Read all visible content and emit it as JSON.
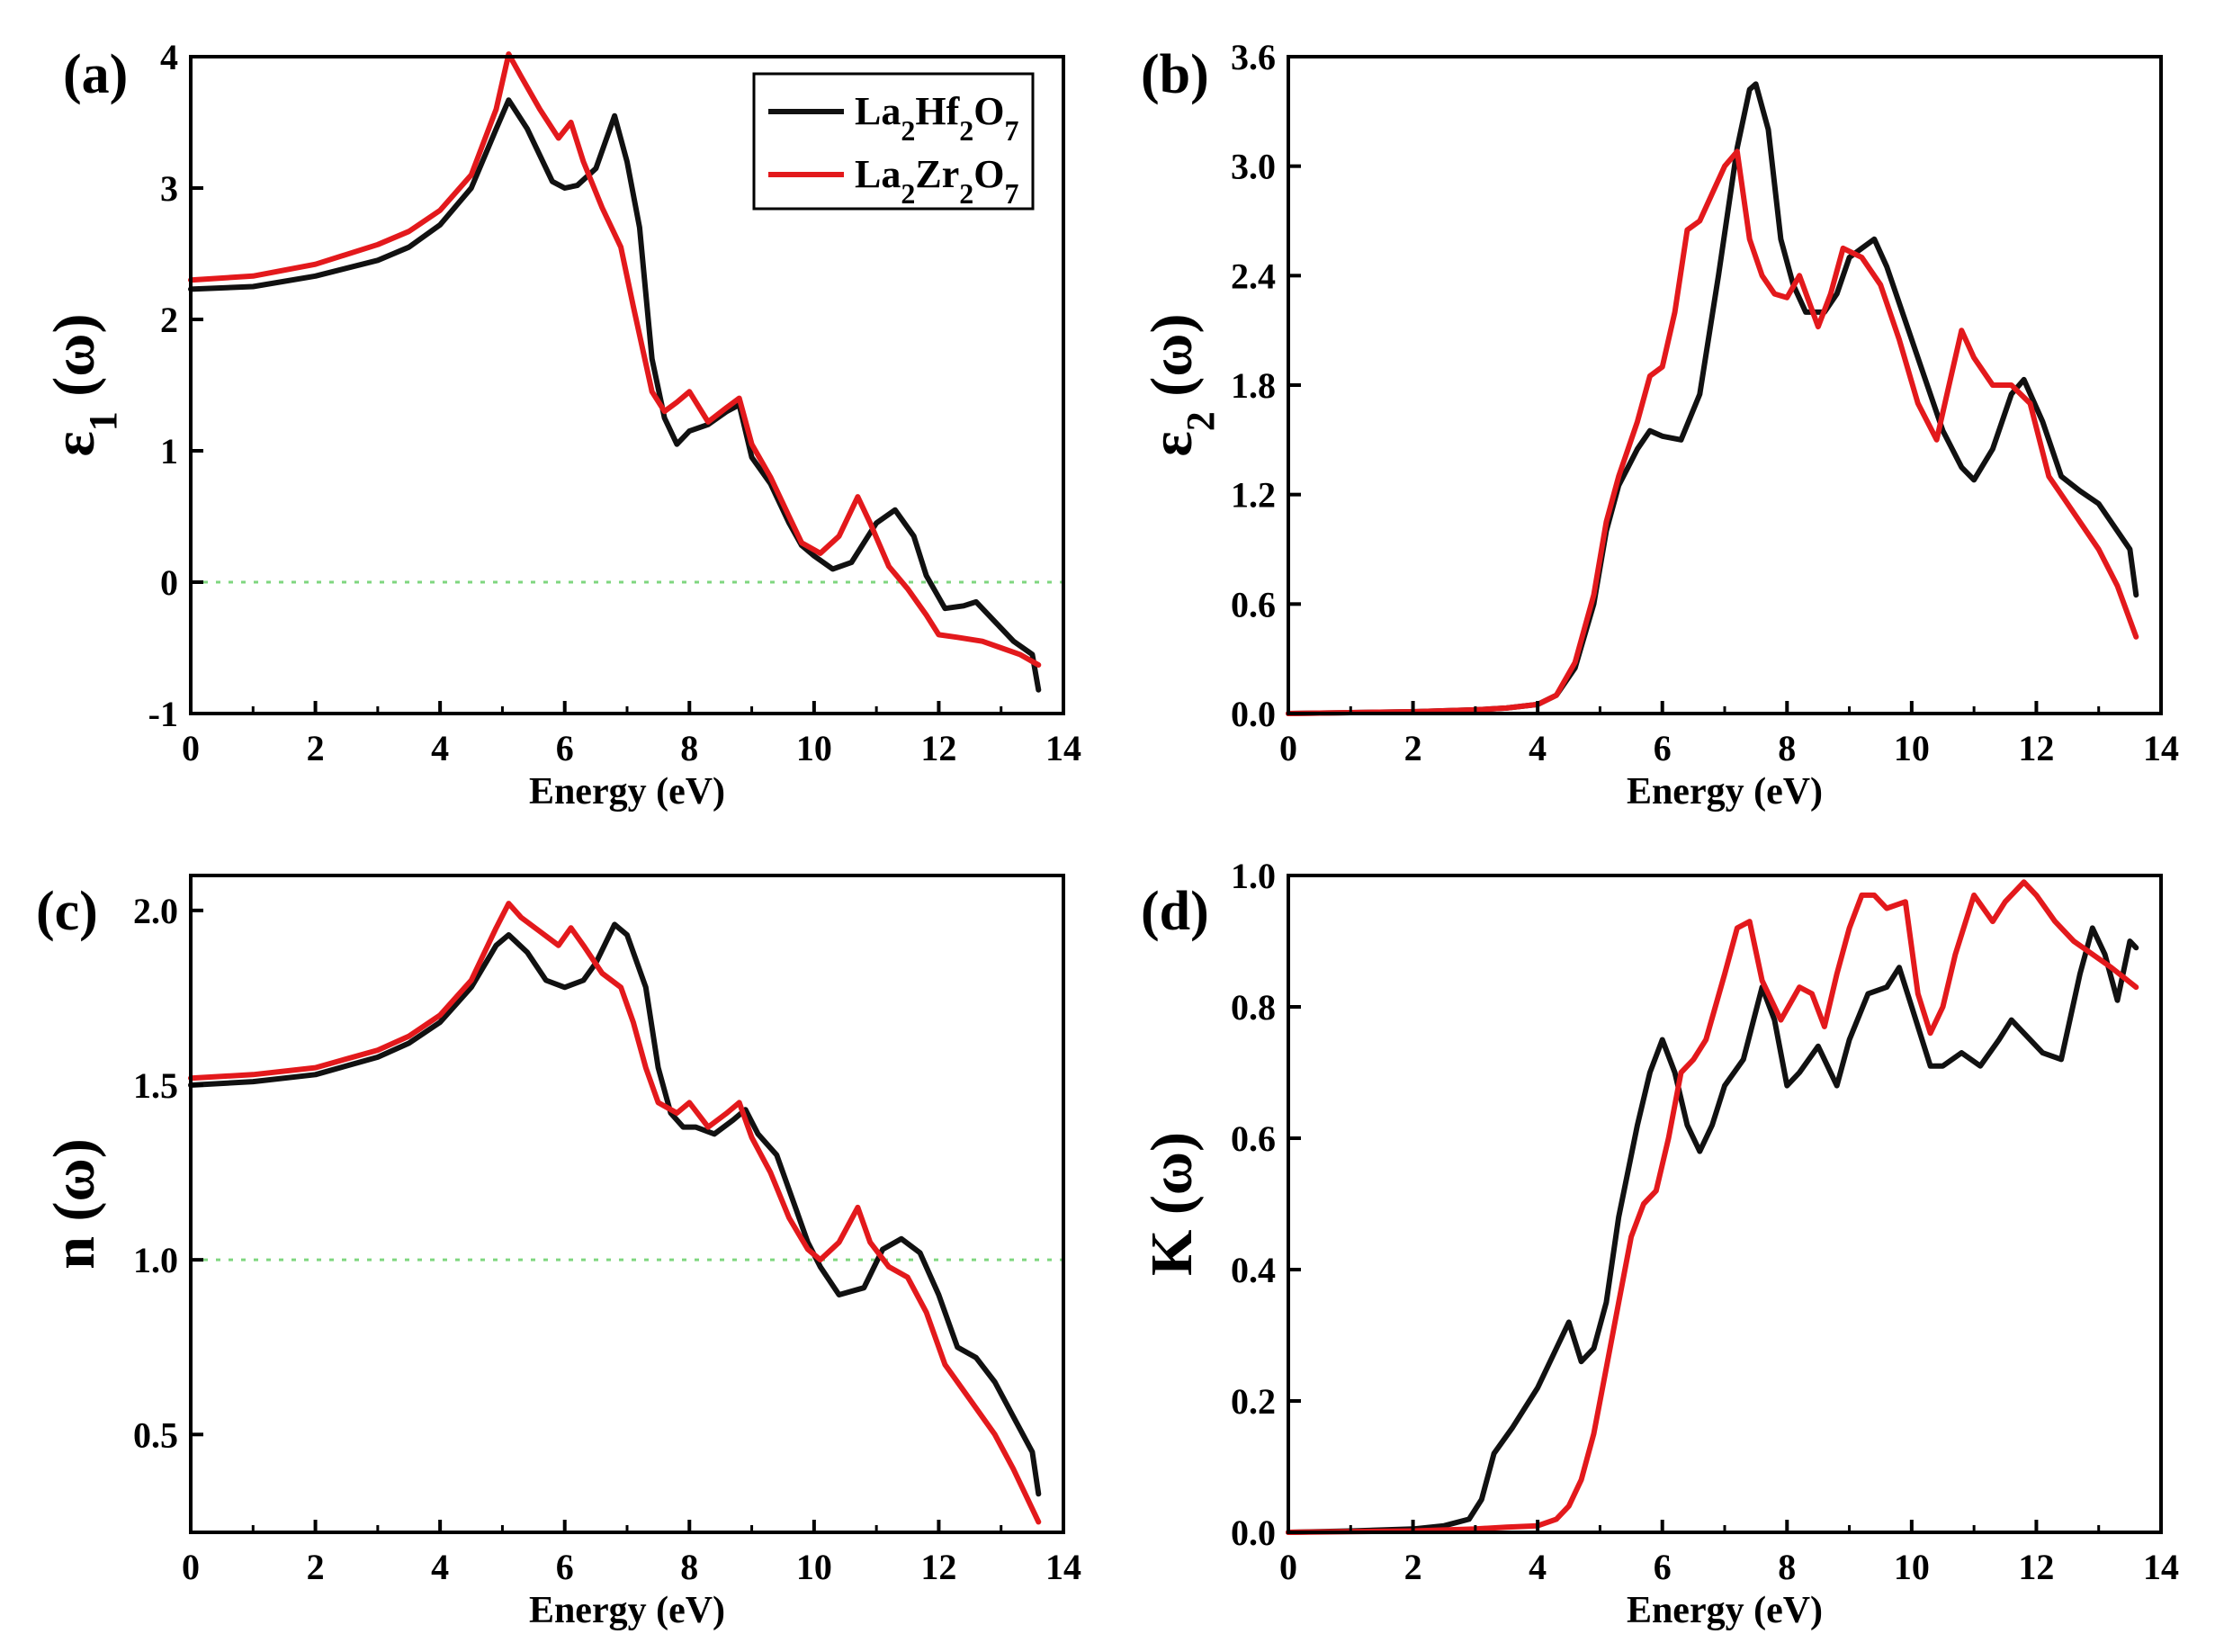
{
  "chart_data": [
    {
      "type": "line",
      "panel_label": "(a)",
      "xlabel": "Energy (eV)",
      "ylabel": "ε",
      "ylabel_sub": "1",
      "ylabel_tail": " (ω)",
      "xlim": [
        0,
        14
      ],
      "ylim": [
        -1,
        4
      ],
      "xticks": [
        "0",
        "2",
        "4",
        "6",
        "8",
        "10",
        "12",
        "14"
      ],
      "yticks": [
        "-1",
        "0",
        "1",
        "2",
        "3",
        "4"
      ],
      "reference_line": 0,
      "series": [
        {
          "name": "La2Hf2O7",
          "x": [
            0,
            1,
            2,
            3,
            3.5,
            4,
            4.5,
            4.9,
            5.1,
            5.4,
            5.8,
            6.0,
            6.2,
            6.5,
            6.8,
            7.0,
            7.2,
            7.4,
            7.6,
            7.8,
            8.0,
            8.3,
            8.6,
            8.8,
            9.0,
            9.3,
            9.6,
            9.8,
            10.0,
            10.3,
            10.6,
            11.0,
            11.3,
            11.6,
            11.8,
            12.1,
            12.4,
            12.6,
            12.9,
            13.2,
            13.5,
            13.6
          ],
          "y": [
            2.23,
            2.25,
            2.33,
            2.45,
            2.55,
            2.72,
            3.0,
            3.45,
            3.67,
            3.45,
            3.05,
            3.0,
            3.02,
            3.15,
            3.55,
            3.2,
            2.7,
            1.7,
            1.25,
            1.05,
            1.15,
            1.2,
            1.3,
            1.35,
            0.95,
            0.75,
            0.45,
            0.28,
            0.2,
            0.1,
            0.15,
            0.45,
            0.55,
            0.35,
            0.05,
            -0.2,
            -0.18,
            -0.15,
            -0.3,
            -0.45,
            -0.55,
            -0.82
          ]
        },
        {
          "name": "La2Zr2O7",
          "x": [
            0,
            1,
            2,
            3,
            3.5,
            4,
            4.5,
            4.9,
            5.1,
            5.3,
            5.6,
            5.9,
            6.1,
            6.3,
            6.6,
            6.9,
            7.1,
            7.4,
            7.6,
            7.8,
            8.0,
            8.3,
            8.6,
            8.8,
            9.0,
            9.3,
            9.6,
            9.8,
            10.1,
            10.4,
            10.7,
            10.9,
            11.2,
            11.5,
            11.8,
            12.0,
            12.3,
            12.7,
            13.0,
            13.3,
            13.6
          ],
          "y": [
            2.3,
            2.33,
            2.42,
            2.57,
            2.67,
            2.83,
            3.1,
            3.6,
            4.02,
            3.85,
            3.6,
            3.38,
            3.5,
            3.2,
            2.85,
            2.55,
            2.1,
            1.45,
            1.3,
            1.37,
            1.45,
            1.22,
            1.33,
            1.4,
            1.05,
            0.8,
            0.5,
            0.3,
            0.22,
            0.35,
            0.65,
            0.45,
            0.12,
            -0.05,
            -0.25,
            -0.4,
            -0.42,
            -0.45,
            -0.5,
            -0.55,
            -0.63
          ]
        }
      ],
      "legend": [
        "La2Hf2O7",
        "La2Zr2O7"
      ],
      "legend_position": "top-right"
    },
    {
      "type": "line",
      "panel_label": "(b)",
      "xlabel": "Energy (eV)",
      "ylabel": "ε",
      "ylabel_sub": "2",
      "ylabel_tail": " (ω)",
      "xlim": [
        0,
        14
      ],
      "ylim": [
        0,
        3.6
      ],
      "xticks": [
        "0",
        "2",
        "4",
        "6",
        "8",
        "10",
        "12",
        "14"
      ],
      "yticks": [
        "0.0",
        "0.6",
        "1.2",
        "1.8",
        "2.4",
        "3.0",
        "3.6"
      ],
      "series": [
        {
          "name": "La2Hf2O7",
          "x": [
            0,
            1,
            2,
            3,
            3.5,
            4,
            4.3,
            4.6,
            4.9,
            5.1,
            5.3,
            5.6,
            5.8,
            6.0,
            6.3,
            6.6,
            6.9,
            7.2,
            7.4,
            7.5,
            7.7,
            7.9,
            8.1,
            8.3,
            8.6,
            8.8,
            9.0,
            9.2,
            9.4,
            9.6,
            9.9,
            10.2,
            10.5,
            10.8,
            11.0,
            11.3,
            11.6,
            11.8,
            12.1,
            12.4,
            12.7,
            13.0,
            13.3,
            13.5,
            13.6
          ],
          "y": [
            0,
            0.005,
            0.01,
            0.02,
            0.03,
            0.05,
            0.1,
            0.25,
            0.6,
            1.0,
            1.25,
            1.45,
            1.55,
            1.52,
            1.5,
            1.75,
            2.4,
            3.1,
            3.42,
            3.45,
            3.2,
            2.6,
            2.35,
            2.2,
            2.2,
            2.3,
            2.5,
            2.55,
            2.6,
            2.45,
            2.15,
            1.85,
            1.55,
            1.35,
            1.28,
            1.45,
            1.75,
            1.83,
            1.6,
            1.3,
            1.22,
            1.15,
            1.0,
            0.9,
            0.65
          ]
        },
        {
          "name": "La2Zr2O7",
          "x": [
            0,
            1,
            2,
            3,
            3.5,
            4,
            4.3,
            4.6,
            4.9,
            5.1,
            5.3,
            5.6,
            5.8,
            6.0,
            6.2,
            6.4,
            6.6,
            6.8,
            7.0,
            7.2,
            7.4,
            7.6,
            7.8,
            8.0,
            8.2,
            8.5,
            8.7,
            8.9,
            9.2,
            9.5,
            9.8,
            10.1,
            10.4,
            10.6,
            10.8,
            11.0,
            11.3,
            11.6,
            11.9,
            12.2,
            12.6,
            13.0,
            13.3,
            13.6
          ],
          "y": [
            0,
            0.005,
            0.01,
            0.02,
            0.03,
            0.05,
            0.1,
            0.28,
            0.65,
            1.05,
            1.3,
            1.6,
            1.85,
            1.9,
            2.2,
            2.65,
            2.7,
            2.85,
            3.0,
            3.08,
            2.6,
            2.4,
            2.3,
            2.28,
            2.4,
            2.12,
            2.3,
            2.55,
            2.5,
            2.35,
            2.05,
            1.7,
            1.5,
            1.8,
            2.1,
            1.95,
            1.8,
            1.8,
            1.7,
            1.3,
            1.1,
            0.9,
            0.7,
            0.42
          ]
        }
      ]
    },
    {
      "type": "line",
      "panel_label": "(c)",
      "xlabel": "Energy (eV)",
      "ylabel": "n",
      "ylabel_sub": "",
      "ylabel_tail": " (ω)",
      "xlim": [
        0,
        14
      ],
      "ylim": [
        0.22,
        2.1
      ],
      "xticks": [
        "0",
        "2",
        "4",
        "6",
        "8",
        "10",
        "12",
        "14"
      ],
      "yticks": [
        "0.5",
        "1.0",
        "1.5",
        "2.0"
      ],
      "reference_line": 1.0,
      "series": [
        {
          "name": "La2Hf2O7",
          "x": [
            0,
            1,
            2,
            3,
            3.5,
            4,
            4.5,
            4.9,
            5.1,
            5.4,
            5.7,
            6.0,
            6.3,
            6.5,
            6.8,
            7.0,
            7.3,
            7.5,
            7.7,
            7.9,
            8.1,
            8.4,
            8.7,
            8.9,
            9.1,
            9.4,
            9.7,
            9.9,
            10.1,
            10.4,
            10.8,
            11.1,
            11.4,
            11.7,
            12.0,
            12.3,
            12.6,
            12.9,
            13.2,
            13.5,
            13.6
          ],
          "y": [
            1.5,
            1.51,
            1.53,
            1.58,
            1.62,
            1.68,
            1.78,
            1.9,
            1.93,
            1.88,
            1.8,
            1.78,
            1.8,
            1.85,
            1.96,
            1.93,
            1.78,
            1.55,
            1.42,
            1.38,
            1.38,
            1.36,
            1.4,
            1.43,
            1.36,
            1.3,
            1.15,
            1.05,
            0.98,
            0.9,
            0.92,
            1.03,
            1.06,
            1.02,
            0.9,
            0.75,
            0.72,
            0.65,
            0.55,
            0.45,
            0.33
          ]
        },
        {
          "name": "La2Zr2O7",
          "x": [
            0,
            1,
            2,
            3,
            3.5,
            4,
            4.5,
            4.9,
            5.1,
            5.3,
            5.6,
            5.9,
            6.1,
            6.3,
            6.6,
            6.9,
            7.1,
            7.3,
            7.5,
            7.8,
            8.0,
            8.3,
            8.6,
            8.8,
            9.0,
            9.3,
            9.6,
            9.9,
            10.1,
            10.4,
            10.7,
            10.9,
            11.2,
            11.5,
            11.8,
            12.1,
            12.5,
            12.9,
            13.2,
            13.6
          ],
          "y": [
            1.52,
            1.53,
            1.55,
            1.6,
            1.64,
            1.7,
            1.8,
            1.95,
            2.02,
            1.98,
            1.94,
            1.9,
            1.95,
            1.9,
            1.82,
            1.78,
            1.68,
            1.55,
            1.45,
            1.42,
            1.45,
            1.38,
            1.42,
            1.45,
            1.35,
            1.25,
            1.12,
            1.03,
            1.0,
            1.05,
            1.15,
            1.05,
            0.98,
            0.95,
            0.85,
            0.7,
            0.6,
            0.5,
            0.4,
            0.25
          ]
        }
      ]
    },
    {
      "type": "line",
      "panel_label": "(d)",
      "xlabel": "Energy (eV)",
      "ylabel": "K",
      "ylabel_sub": "",
      "ylabel_tail": " (ω)",
      "xlim": [
        0,
        14
      ],
      "ylim": [
        0,
        1.0
      ],
      "xticks": [
        "0",
        "2",
        "4",
        "6",
        "8",
        "10",
        "12",
        "14"
      ],
      "yticks": [
        "0.0",
        "0.2",
        "0.4",
        "0.6",
        "0.8",
        "1.0"
      ],
      "series": [
        {
          "name": "La2Hf2O7",
          "x": [
            0,
            1,
            2,
            2.5,
            2.9,
            3.1,
            3.3,
            3.6,
            4.0,
            4.3,
            4.5,
            4.7,
            4.9,
            5.1,
            5.3,
            5.6,
            5.8,
            6.0,
            6.2,
            6.4,
            6.6,
            6.8,
            7.0,
            7.3,
            7.6,
            7.8,
            8.0,
            8.2,
            8.5,
            8.8,
            9.0,
            9.3,
            9.6,
            9.8,
            10.0,
            10.3,
            10.5,
            10.8,
            11.1,
            11.4,
            11.6,
            11.8,
            12.1,
            12.4,
            12.7,
            12.9,
            13.1,
            13.3,
            13.5,
            13.6
          ],
          "y": [
            0,
            0.002,
            0.005,
            0.01,
            0.02,
            0.05,
            0.12,
            0.16,
            0.22,
            0.28,
            0.32,
            0.26,
            0.28,
            0.35,
            0.48,
            0.62,
            0.7,
            0.75,
            0.7,
            0.62,
            0.58,
            0.62,
            0.68,
            0.72,
            0.83,
            0.78,
            0.68,
            0.7,
            0.74,
            0.68,
            0.75,
            0.82,
            0.83,
            0.86,
            0.8,
            0.71,
            0.71,
            0.73,
            0.71,
            0.75,
            0.78,
            0.76,
            0.73,
            0.72,
            0.85,
            0.92,
            0.88,
            0.81,
            0.9,
            0.89
          ]
        },
        {
          "name": "La2Zr2O7",
          "x": [
            0,
            1,
            2,
            3,
            3.5,
            4,
            4.3,
            4.5,
            4.7,
            4.9,
            5.1,
            5.3,
            5.5,
            5.7,
            5.9,
            6.1,
            6.3,
            6.5,
            6.7,
            7.0,
            7.2,
            7.4,
            7.6,
            7.9,
            8.2,
            8.4,
            8.6,
            8.8,
            9.0,
            9.2,
            9.4,
            9.6,
            9.9,
            10.1,
            10.3,
            10.5,
            10.7,
            11.0,
            11.3,
            11.5,
            11.8,
            12.0,
            12.3,
            12.6,
            12.9,
            13.2,
            13.6
          ],
          "y": [
            0,
            0.001,
            0.002,
            0.005,
            0.008,
            0.01,
            0.02,
            0.04,
            0.08,
            0.15,
            0.25,
            0.35,
            0.45,
            0.5,
            0.52,
            0.6,
            0.7,
            0.72,
            0.75,
            0.85,
            0.92,
            0.93,
            0.84,
            0.78,
            0.83,
            0.82,
            0.77,
            0.85,
            0.92,
            0.97,
            0.97,
            0.95,
            0.96,
            0.82,
            0.76,
            0.8,
            0.88,
            0.97,
            0.93,
            0.96,
            0.99,
            0.97,
            0.93,
            0.9,
            0.88,
            0.86,
            0.83
          ]
        }
      ]
    }
  ],
  "colors": {
    "La2Hf2O7": "#111111",
    "La2Zr2O7": "#e3191c",
    "reference": "#7fd67f",
    "axes": "#000000"
  },
  "legend_labels": [
    {
      "base": "La",
      "n1": "2",
      "mid": "Hf",
      "n2": "2",
      "end": "O",
      "n3": "7"
    },
    {
      "base": "La",
      "n1": "2",
      "mid": "Zr",
      "n2": "2",
      "end": "O",
      "n3": "7"
    }
  ]
}
